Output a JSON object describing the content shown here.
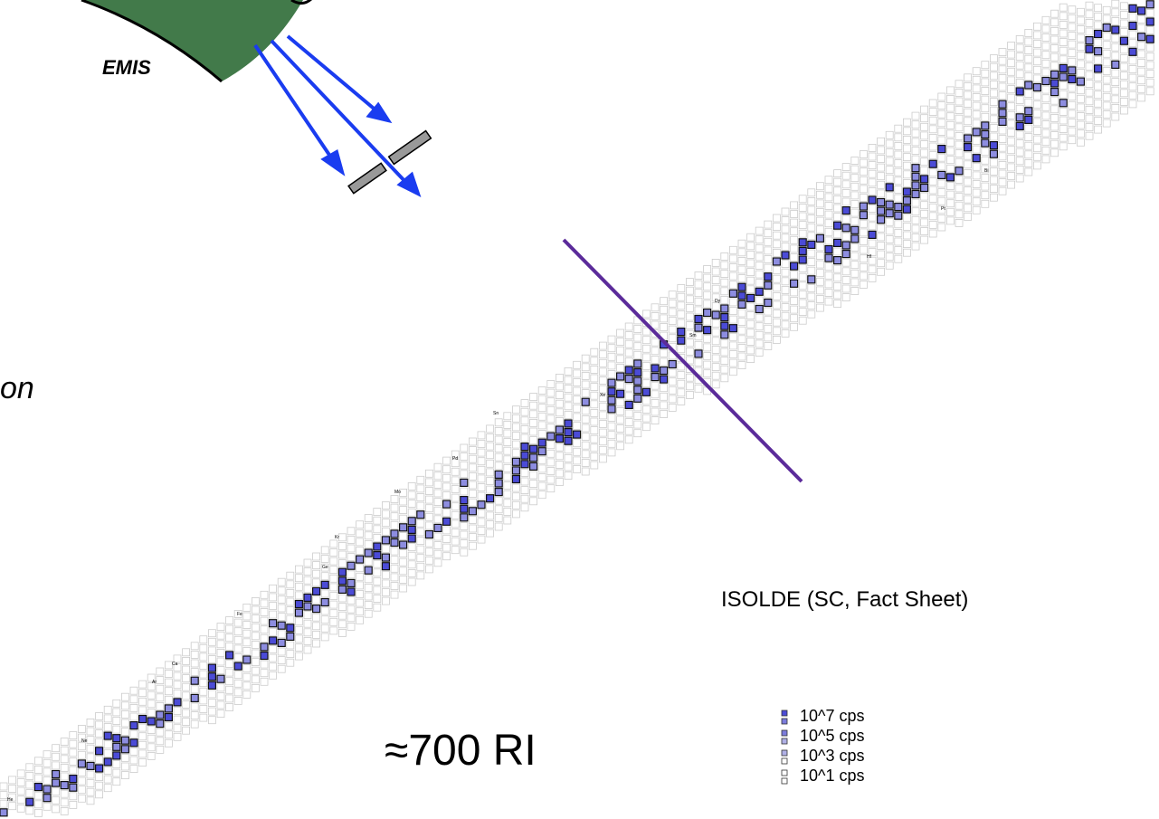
{
  "header": {
    "emis": "EMIS",
    "partial": "on"
  },
  "notes": {
    "source": "ISOLDE (SC, Fact Sheet)",
    "count": "≈700 RI"
  },
  "legend": [
    "10^7 cps",
    "10^5 cps",
    "10^3 cps",
    "10^1 cps"
  ],
  "elements": [
    "Bi",
    "Pt",
    "Hf",
    "Dy",
    "Sm",
    "Xe",
    "Sn",
    "Pd",
    "Mo",
    "Kr",
    "Ge",
    "Fe",
    "Ca",
    "Ar",
    "Ne",
    "He"
  ]
}
